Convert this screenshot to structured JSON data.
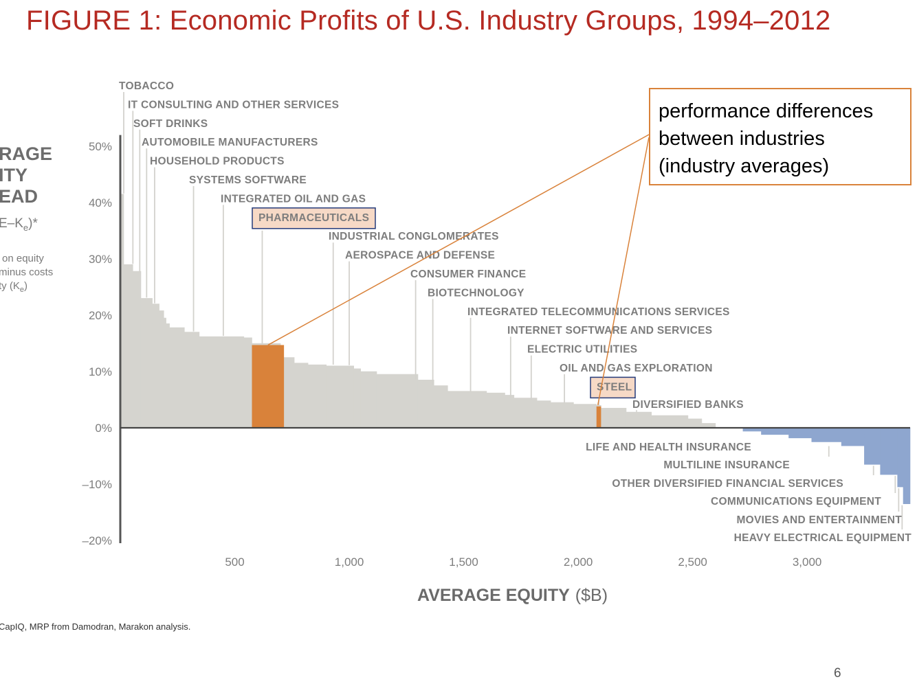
{
  "slide": {
    "title": "FIGURE 1:  Economic Profits of U.S. Industry Groups, 1994–2012",
    "callout_lines": [
      "performance differences",
      "between industries",
      "(industry averages)"
    ],
    "source": "CapIQ, MRP from Damodran, Marakon analysis.",
    "page_number": "6"
  },
  "chart_data": {
    "type": "bar",
    "title": "Economic Profits of U.S. Industry Groups, 1994–2012",
    "ylabel_lines": [
      "RAGE",
      "ITY",
      "EAD"
    ],
    "ylabel_formula": "E–K",
    "ylabel_formula_sub": "e",
    "ylabel_formula_tail": ")*",
    "ylabel_desc": [
      "on equity",
      "minus costs",
      "ty (K",
      "e",
      ")"
    ],
    "xlabel": "AVERAGE EQUITY",
    "xlabel_unit": "($B)",
    "xlim": [
      0,
      3450
    ],
    "ylim": [
      -20,
      50
    ],
    "y_ticks": [
      50,
      40,
      30,
      20,
      10,
      0,
      -10,
      -20
    ],
    "y_tick_labels": [
      "50%",
      "40%",
      "30%",
      "20%",
      "10%",
      "0%",
      "–10%",
      "–20%"
    ],
    "x_ticks": [
      500,
      1000,
      1500,
      2000,
      2500,
      3000
    ],
    "x_tick_labels": [
      "500",
      "1,000",
      "1,500",
      "2,000",
      "2,500",
      "3,000"
    ],
    "colors": {
      "positive": "#d5d4cf",
      "negative": "#8ea6cf",
      "highlight": "#d9823a",
      "axis": "#555555",
      "label_box": "#243a7a",
      "label_fill": "#f6d9c6"
    },
    "series_profile": [
      [
        0,
        41.5
      ],
      [
        15,
        29
      ],
      [
        55,
        27.8
      ],
      [
        90,
        23
      ],
      [
        140,
        22
      ],
      [
        170,
        20.8
      ],
      [
        190,
        19.5
      ],
      [
        200,
        18.5
      ],
      [
        215,
        17.8
      ],
      [
        280,
        17.0
      ],
      [
        345,
        16.2
      ],
      [
        540,
        16.0
      ],
      [
        575,
        15.0
      ],
      [
        700,
        12.5
      ],
      [
        760,
        11.5
      ],
      [
        820,
        11.2
      ],
      [
        900,
        11.0
      ],
      [
        1020,
        10.5
      ],
      [
        1050,
        10.0
      ],
      [
        1120,
        9.5
      ],
      [
        1300,
        8.5
      ],
      [
        1370,
        7.5
      ],
      [
        1430,
        6.5
      ],
      [
        1600,
        6.2
      ],
      [
        1680,
        5.8
      ],
      [
        1720,
        5.3
      ],
      [
        1820,
        4.8
      ],
      [
        1880,
        4.5
      ],
      [
        1980,
        4.2
      ],
      [
        2080,
        4.0
      ],
      [
        2100,
        3.5
      ],
      [
        2210,
        2.8
      ],
      [
        2320,
        2.2
      ],
      [
        2480,
        1.6
      ],
      [
        2540,
        0.8
      ],
      [
        2600,
        0
      ],
      [
        2720,
        -0.6
      ],
      [
        2800,
        -1.2
      ],
      [
        2920,
        -1.8
      ],
      [
        3020,
        -2.5
      ],
      [
        3150,
        -3.2
      ],
      [
        3250,
        -6.5
      ],
      [
        3320,
        -8.3
      ],
      [
        3395,
        -10.5
      ],
      [
        3420,
        -13.5
      ],
      [
        3450,
        0
      ]
    ],
    "highlights": [
      {
        "name": "PHARMACEUTICALS",
        "x0": 575,
        "x1": 715,
        "value": 14.7
      },
      {
        "name": "STEEL",
        "x0": 2080,
        "x1": 2100,
        "value": 3.8
      }
    ],
    "industries_above": [
      {
        "name": "TOBACCO",
        "x": 15,
        "value": 41.5,
        "boxed": false
      },
      {
        "name": "IT CONSULTING AND OTHER SERVICES",
        "x": 55,
        "value": 29,
        "boxed": false
      },
      {
        "name": "SOFT DRINKS",
        "x": 85,
        "value": 27.5,
        "boxed": false
      },
      {
        "name": "AUTOMOBILE MANUFACTURERS",
        "x": 115,
        "value": 23,
        "boxed": false
      },
      {
        "name": "HOUSEHOLD PRODUCTS",
        "x": 150,
        "value": 22,
        "boxed": false
      },
      {
        "name": "SYSTEMS SOFTWARE",
        "x": 320,
        "value": 17,
        "boxed": false
      },
      {
        "name": "INTEGRATED OIL AND GAS",
        "x": 450,
        "value": 16.2,
        "boxed": false
      },
      {
        "name": "PHARMACEUTICALS",
        "x": 620,
        "value": 14.7,
        "boxed": true
      },
      {
        "name": "INDUSTRIAL CONGLOMERATES",
        "x": 930,
        "value": 11.1,
        "boxed": false
      },
      {
        "name": "AEROSPACE AND DEFENSE",
        "x": 1000,
        "value": 11.0,
        "boxed": false
      },
      {
        "name": "CONSUMER FINANCE",
        "x": 1290,
        "value": 8.5,
        "boxed": false
      },
      {
        "name": "BIOTECHNOLOGY",
        "x": 1365,
        "value": 7.5,
        "boxed": false
      },
      {
        "name": "INTEGRATED TELECOMMUNICATIONS SERVICES",
        "x": 1530,
        "value": 6.2,
        "boxed": false
      },
      {
        "name": "INTERNET SOFTWARE AND SERVICES",
        "x": 1705,
        "value": 5.3,
        "boxed": false
      },
      {
        "name": "ELECTRIC UTILITIES",
        "x": 1795,
        "value": 4.8,
        "boxed": false
      },
      {
        "name": "OIL AND GAS EXPLORATION",
        "x": 1940,
        "value": 4.2,
        "boxed": false
      },
      {
        "name": "STEEL",
        "x": 2090,
        "value": 3.8,
        "boxed": true
      },
      {
        "name": "DIVERSIFIED BANKS",
        "x": 2255,
        "value": 2.8,
        "boxed": false
      }
    ],
    "industries_below": [
      {
        "name": "LIFE AND HEALTH INSURANCE",
        "x": 2740,
        "value": -0.6
      },
      {
        "name": "MULTILINE INSURANCE",
        "x": 3095,
        "value": -3.0
      },
      {
        "name": "OTHER DIVERSIFIED FINANCIAL SERVICES",
        "x": 3290,
        "value": -6.5
      },
      {
        "name": "COMMUNICATIONS EQUIPMENT",
        "x": 3385,
        "value": -8.3
      },
      {
        "name": "MOVIES AND ENTERTAINMENT",
        "x": 3400,
        "value": -10.5
      },
      {
        "name": "HEAVY ELECTRICAL EQUIPMENT",
        "x": 3415,
        "value": -13.5
      }
    ]
  }
}
